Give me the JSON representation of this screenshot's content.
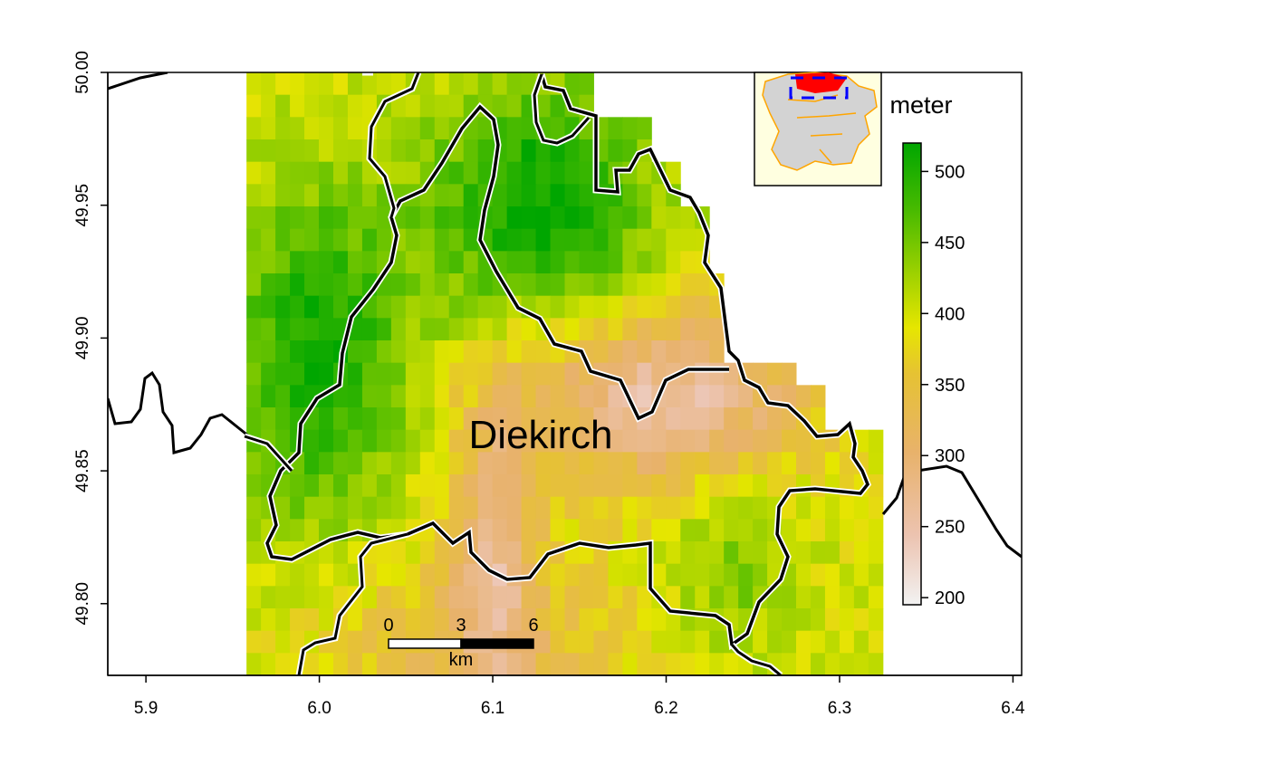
{
  "map": {
    "place_label": "Diekirch",
    "x_axis": {
      "ticks": [
        "5.9",
        "6.0",
        "6.1",
        "6.2",
        "6.3",
        "6.4"
      ],
      "range": [
        5.878,
        6.405
      ]
    },
    "y_axis": {
      "ticks": [
        "49.80",
        "49.85",
        "49.90",
        "49.95",
        "50.00"
      ],
      "range": [
        49.773,
        50.0
      ]
    },
    "raster_extent": {
      "lon": [
        5.958,
        6.325
      ],
      "lat": [
        49.773,
        50.0
      ]
    },
    "scale_bar": {
      "labels": [
        "0",
        "3",
        "6"
      ],
      "unit": "km"
    },
    "legend": {
      "title": "meter",
      "ticks": [
        "200",
        "250",
        "300",
        "350",
        "400",
        "450",
        "500"
      ],
      "range": [
        195,
        520
      ]
    },
    "inset": {
      "description_icon": "luxembourg-overview-inset"
    },
    "colors": {
      "low": "#f2f2f2",
      "mid_low": "#ebb48f",
      "mid": "#e6c84a",
      "high_mid": "#e6e600",
      "high": "#00a600",
      "inset_bg": "#ffffe0",
      "inset_district": "#d3d3d3",
      "inset_highlight": "#ff0000",
      "inset_box": "#0000ff",
      "inset_border": "#ffa500"
    }
  }
}
